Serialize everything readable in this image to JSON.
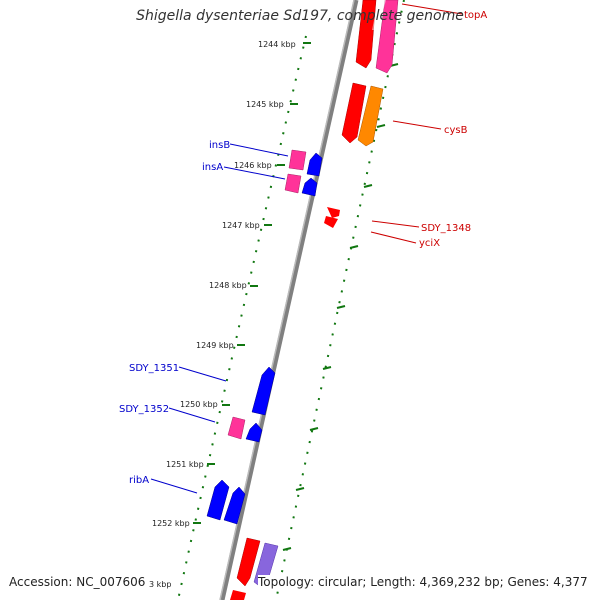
{
  "title": "Shigella dysenteriae Sd197, complete genome",
  "footer": {
    "accession": "Accession: NC_007606",
    "info": "Topology: circular; Length: 4,369,232 bp; Genes: 4,377"
  },
  "ticks": [
    "1244 kbp",
    "1245 kbp",
    "1246 kbp",
    "1247 kbp",
    "1248 kbp",
    "1249 kbp",
    "1250 kbp",
    "1251 kbp",
    "1252 kbp",
    "3 kbp"
  ],
  "genes_forward": [
    "topA",
    "cysB",
    "SDY_1348",
    "yciX"
  ],
  "genes_reverse": [
    "insB",
    "insA",
    "SDY_1351",
    "SDY_1352",
    "ribA"
  ],
  "colors": {
    "forward_label": "#cc0000",
    "reverse_label": "#0000cc",
    "cds_forward": "#ff0000",
    "cds_reverse": "#0000ff",
    "cds_magenta": "#ff3399",
    "cds_orange": "#ff8800",
    "cds_lavender": "#8866dd",
    "backbone": "#808080",
    "tick_ring": "#117711"
  }
}
